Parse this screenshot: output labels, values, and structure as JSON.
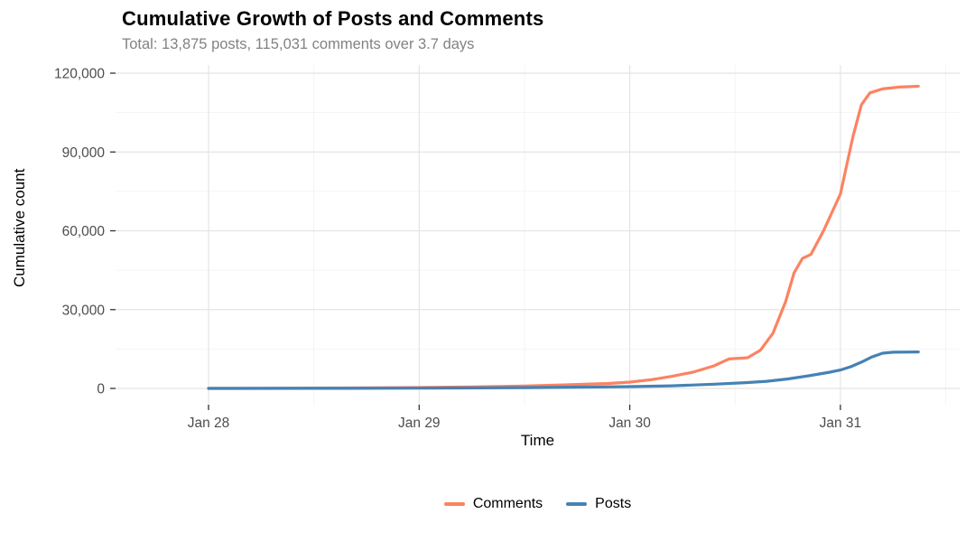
{
  "chart_data": {
    "type": "line",
    "title": "Cumulative Growth of Posts and Comments",
    "subtitle": "Total: 13,875 posts, 115,031 comments over 3.7 days",
    "xlabel": "Time",
    "ylabel": "Cumulative count",
    "x_unit": "days since Jan 28 00:00",
    "xlim": [
      -0.45,
      3.57
    ],
    "ylim": [
      0,
      120000
    ],
    "grid": {
      "major_color": "#E4E4E4",
      "minor_color": "#F2F2F2",
      "minor_x_days": [
        0.5,
        1.5,
        2.5,
        3.5
      ],
      "minor_y_values": [
        15000,
        45000,
        75000,
        105000
      ]
    },
    "x_ticks": [
      {
        "day": 0,
        "label": "Jan 28"
      },
      {
        "day": 1,
        "label": "Jan 29"
      },
      {
        "day": 2,
        "label": "Jan 30"
      },
      {
        "day": 3,
        "label": "Jan 31"
      }
    ],
    "y_ticks": [
      {
        "value": 0,
        "label": "0"
      },
      {
        "value": 30000,
        "label": "30,000"
      },
      {
        "value": 60000,
        "label": "60,000"
      },
      {
        "value": 90000,
        "label": "90,000"
      },
      {
        "value": 120000,
        "label": "120,000"
      }
    ],
    "legend_position": "bottom",
    "series": [
      {
        "name": "Comments",
        "color": "#FB8361",
        "total": 115031,
        "x": [
          0,
          0.25,
          0.5,
          0.75,
          1.0,
          1.25,
          1.5,
          1.75,
          1.9,
          2.0,
          2.1,
          2.2,
          2.3,
          2.4,
          2.47,
          2.56,
          2.62,
          2.68,
          2.74,
          2.78,
          2.82,
          2.86,
          2.92,
          3.0,
          3.06,
          3.1,
          3.14,
          3.2,
          3.28,
          3.37
        ],
        "y": [
          30,
          80,
          150,
          230,
          350,
          600,
          900,
          1500,
          1900,
          2400,
          3300,
          4600,
          6200,
          8600,
          11200,
          11700,
          14500,
          21000,
          33000,
          44000,
          49500,
          51000,
          60000,
          74000,
          96000,
          108000,
          112500,
          114000,
          114700,
          115031
        ]
      },
      {
        "name": "Posts",
        "color": "#4682B4",
        "total": 13875,
        "x": [
          0,
          0.5,
          1.0,
          1.5,
          1.8,
          2.0,
          2.2,
          2.4,
          2.55,
          2.65,
          2.75,
          2.85,
          2.95,
          3.0,
          3.05,
          3.1,
          3.15,
          3.2,
          3.25,
          3.37
        ],
        "y": [
          10,
          40,
          120,
          300,
          500,
          700,
          1000,
          1600,
          2200,
          2700,
          3600,
          4800,
          6200,
          7000,
          8300,
          10000,
          12000,
          13400,
          13800,
          13875
        ]
      }
    ]
  }
}
